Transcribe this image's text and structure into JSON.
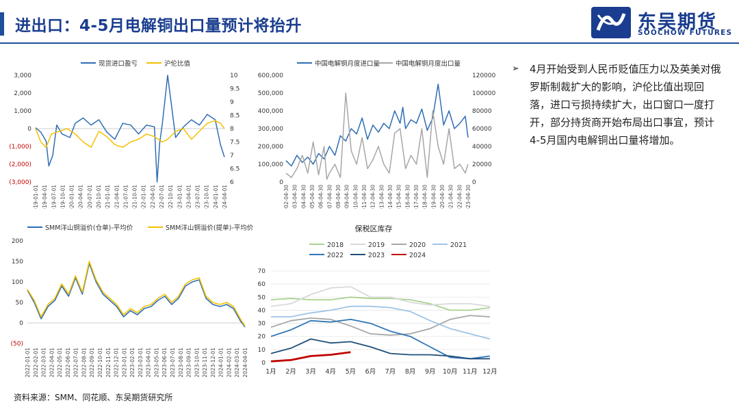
{
  "header": {
    "title": "进出口：4-5月电解铜出口量预计将抬升",
    "logo_name": "东吴期货",
    "logo_sub": "SOOCHOW FUTURES"
  },
  "commentary": "4月开始受到人民币贬值压力以及英美对俄罗斯制裁扩大的影响，沪伦比值出现回落，进口亏损持续扩大，出口窗口一度打开，部分持货商开始布局出口事宜，预计4-5月国内电解铜出口量将增加。",
  "source": "资料来源：SMM、同花顺、东吴期货研究所",
  "colors": {
    "blue": "#2e6db4",
    "yellow": "#f5c000",
    "gray": "#a6a6a6",
    "red": "#c00000",
    "navy": "#1a3d8f"
  },
  "chart_data": [
    {
      "id": "import-profit",
      "type": "line",
      "title": "",
      "legend_position": "top",
      "series": [
        {
          "name": "现货进口盈亏",
          "axis": "left",
          "color": "#2e6db4",
          "x_index": [
            0,
            4,
            8,
            10,
            13,
            16,
            20,
            26,
            30,
            36,
            42,
            48,
            54,
            60,
            66,
            72,
            78,
            84,
            90,
            92,
            94,
            96,
            100,
            106,
            112,
            118,
            124,
            130,
            136,
            140,
            143
          ],
          "values": [
            50,
            -200,
            -700,
            -2100,
            -1500,
            200,
            -300,
            -500,
            300,
            600,
            200,
            500,
            -200,
            -600,
            300,
            200,
            -300,
            200,
            100,
            -3000,
            -800,
            300,
            3000,
            -500,
            100,
            500,
            200,
            800,
            500,
            -900,
            -1600
          ]
        },
        {
          "name": "沪伦比值",
          "axis": "right",
          "color": "#f5c000",
          "x_index": [
            0,
            4,
            8,
            12,
            18,
            24,
            30,
            36,
            42,
            48,
            54,
            60,
            66,
            72,
            78,
            84,
            90,
            96,
            100,
            106,
            112,
            118,
            124,
            130,
            136,
            140,
            143
          ],
          "values": [
            8.0,
            7.5,
            7.3,
            7.8,
            7.9,
            8.0,
            7.8,
            7.5,
            7.3,
            7.9,
            7.7,
            7.4,
            7.3,
            7.5,
            7.6,
            7.8,
            7.7,
            7.5,
            7.6,
            7.9,
            8.0,
            7.6,
            7.9,
            8.2,
            8.3,
            8.2,
            8.0
          ]
        }
      ],
      "x_tick_labels": [
        "2019-01-01",
        "2019-04-01",
        "2019-07-01",
        "2019-10-01",
        "2020-01-01",
        "2020-04-01",
        "2020-07-01",
        "2020-10-01",
        "2021-01-01",
        "2021-04-01",
        "2021-07-01",
        "2021-10-01",
        "2022-01-01",
        "2022-04-01",
        "2022-07-01",
        "2022-10-01",
        "2023-01-01",
        "2023-04-01",
        "2023-07-01",
        "2023-10-01",
        "2024-01-01",
        "2024-04-01"
      ],
      "y_left_ticks": [
        "3,000",
        "2,000",
        "1,000",
        "0",
        "(1,000)",
        "(2,000)",
        "(3,000)"
      ],
      "y_left_range": [
        -3000,
        3000
      ],
      "y_right_ticks": [
        "10",
        "9.5",
        "9",
        "8.5",
        "8",
        "7.5",
        "7",
        "6.5",
        "6"
      ],
      "y_right_range": [
        6,
        10
      ]
    },
    {
      "id": "import-export-volume",
      "type": "line",
      "title": "",
      "legend_position": "top",
      "series": [
        {
          "name": "中国电解铜月度进口量",
          "axis": "left",
          "color": "#2e6db4",
          "x_index": [
            0,
            4,
            8,
            12,
            16,
            20,
            24,
            28,
            32,
            36,
            40,
            44,
            48,
            52,
            56,
            60,
            64,
            68,
            72,
            76,
            80,
            84,
            86,
            88,
            92,
            96,
            100,
            104,
            108,
            112,
            116,
            120,
            124,
            128,
            132,
            134
          ],
          "values": [
            120000,
            90000,
            150000,
            110000,
            140000,
            100000,
            160000,
            130000,
            200000,
            150000,
            260000,
            230000,
            300000,
            270000,
            360000,
            240000,
            320000,
            280000,
            330000,
            300000,
            400000,
            330000,
            420000,
            300000,
            350000,
            330000,
            410000,
            290000,
            360000,
            550000,
            320000,
            400000,
            300000,
            330000,
            370000,
            250000
          ]
        },
        {
          "name": "中国电解铜月度出口量",
          "axis": "right",
          "color": "#a6a6a6",
          "x_index": [
            0,
            4,
            8,
            12,
            16,
            20,
            24,
            28,
            30,
            32,
            36,
            40,
            44,
            48,
            52,
            56,
            60,
            64,
            68,
            72,
            76,
            80,
            84,
            88,
            92,
            96,
            100,
            104,
            108,
            112,
            116,
            120,
            124,
            128,
            132,
            134
          ],
          "values": [
            10000,
            5000,
            15000,
            30000,
            10000,
            45000,
            8000,
            40000,
            3000,
            10000,
            20000,
            5000,
            100000,
            35000,
            20000,
            50000,
            15000,
            25000,
            40000,
            20000,
            10000,
            55000,
            60000,
            15000,
            30000,
            20000,
            60000,
            5000,
            80000,
            40000,
            20000,
            60000,
            15000,
            20000,
            10000,
            20000
          ]
        }
      ],
      "x_tick_labels": [
        "2002-04-30",
        "2003-04-30",
        "2004-04-30",
        "2005-04-30",
        "2006-04-30",
        "2007-04-30",
        "2008-04-30",
        "2009-04-30",
        "2010-04-30",
        "2011-04-30",
        "2012-04-30",
        "2013-04-30",
        "2014-04-30",
        "2015-04-30",
        "2016-04-30",
        "2017-04-30",
        "2018-04-30",
        "2019-04-30",
        "2020-04-30",
        "2021-04-30",
        "2022-04-30",
        "2023-04-30"
      ],
      "y_left_ticks": [
        "600,000",
        "500,000",
        "400,000",
        "300,000",
        "200,000",
        "100,000",
        "0"
      ],
      "y_left_range": [
        0,
        600000
      ],
      "y_right_ticks": [
        "120000",
        "100000",
        "80000",
        "60000",
        "40000",
        "20000",
        "0"
      ],
      "y_right_range": [
        0,
        120000
      ]
    },
    {
      "id": "yangshan-premium",
      "type": "line",
      "title": "",
      "legend_position": "top",
      "series": [
        {
          "name": "SMM洋山铜溢价(仓单)-平均价",
          "color": "#2e6db4",
          "x_index": [
            0,
            3,
            6,
            9,
            12,
            15,
            18,
            21,
            24,
            27,
            30,
            33,
            36,
            39,
            42,
            45,
            48,
            51,
            54,
            57,
            60,
            63,
            66,
            69,
            72,
            75,
            78,
            81,
            84,
            87,
            90,
            93,
            95
          ],
          "values": [
            80,
            50,
            10,
            40,
            55,
            90,
            65,
            110,
            70,
            145,
            100,
            70,
            55,
            40,
            15,
            30,
            20,
            35,
            40,
            55,
            65,
            45,
            60,
            90,
            100,
            105,
            60,
            45,
            40,
            45,
            35,
            5,
            -10
          ]
        },
        {
          "name": "SMM洋山铜溢价(提单)-平均价",
          "color": "#f5c000",
          "x_index": [
            0,
            3,
            6,
            9,
            12,
            15,
            18,
            21,
            24,
            27,
            30,
            33,
            36,
            39,
            42,
            45,
            48,
            51,
            54,
            57,
            60,
            63,
            66,
            69,
            72,
            75,
            78,
            81,
            84,
            87,
            90,
            93,
            95
          ],
          "values": [
            82,
            55,
            15,
            45,
            60,
            95,
            70,
            115,
            75,
            150,
            105,
            75,
            60,
            45,
            20,
            35,
            25,
            40,
            45,
            60,
            70,
            50,
            65,
            95,
            105,
            110,
            65,
            50,
            45,
            50,
            40,
            10,
            -8
          ]
        }
      ],
      "x_tick_labels": [
        "2022-01-01",
        "2022-02-01",
        "2022-03-01",
        "2022-04-01",
        "2022-05-01",
        "2022-06-01",
        "2022-07-01",
        "2022-08-01",
        "2022-09-01",
        "2022-10-01",
        "2022-11-01",
        "2022-12-01",
        "2023-01-01",
        "2023-02-01",
        "2023-03-01",
        "2023-04-01",
        "2023-05-01",
        "2023-06-01",
        "2023-07-01",
        "2023-08-01",
        "2023-09-01",
        "2023-10-01",
        "2023-11-01",
        "2023-12-01",
        "2024-01-01",
        "2024-02-01",
        "2024-03-01",
        "2024-04-01"
      ],
      "y_ticks": [
        "200",
        "150",
        "100",
        "50",
        "0",
        "(50)"
      ],
      "y_range": [
        -50,
        200
      ]
    },
    {
      "id": "bonded-stock",
      "type": "line",
      "title": "保税区库存",
      "legend_position": "top",
      "categories": [
        "1月",
        "2月",
        "3月",
        "4月",
        "5月",
        "6月",
        "7月",
        "8月",
        "9月",
        "10月",
        "11月",
        "12月"
      ],
      "series": [
        {
          "name": "2018",
          "color": "#a9d18e",
          "x": [
            0,
            1,
            2,
            3,
            4,
            5,
            6,
            7,
            8,
            9,
            10,
            11
          ],
          "values": [
            48,
            49,
            48,
            48,
            50,
            49,
            49,
            48,
            45,
            40,
            40,
            42
          ]
        },
        {
          "name": "2019",
          "color": "#d9d9d9",
          "x": [
            0,
            1,
            2,
            3,
            4,
            5,
            6,
            7,
            8,
            9,
            10,
            11
          ],
          "values": [
            43,
            45,
            52,
            57,
            58,
            50,
            50,
            46,
            44,
            45,
            45,
            43
          ]
        },
        {
          "name": "2020",
          "color": "#a6a6a6",
          "x": [
            0,
            1,
            2,
            3,
            4,
            5,
            6,
            7,
            8,
            9,
            10,
            11
          ],
          "values": [
            27,
            32,
            34,
            33,
            28,
            22,
            21,
            22,
            26,
            33,
            36,
            35
          ]
        },
        {
          "name": "2021",
          "color": "#9dc3e6",
          "x": [
            0,
            1,
            2,
            3,
            4,
            5,
            6,
            7,
            8,
            9,
            10,
            11
          ],
          "values": [
            35,
            35,
            38,
            40,
            43,
            43,
            42,
            39,
            32,
            26,
            22,
            18
          ]
        },
        {
          "name": "2022",
          "color": "#2e75b6",
          "x": [
            0,
            1,
            2,
            3,
            4,
            5,
            6,
            7,
            8,
            9,
            10,
            11
          ],
          "values": [
            20,
            25,
            32,
            31,
            33,
            30,
            24,
            20,
            12,
            4,
            3,
            5
          ]
        },
        {
          "name": "2023",
          "color": "#1f4e79",
          "x": [
            0,
            1,
            2,
            3,
            4,
            5,
            6,
            7,
            8,
            9,
            10,
            11
          ],
          "values": [
            7,
            11,
            18,
            15,
            16,
            12,
            7,
            6,
            6,
            5,
            3,
            3
          ]
        },
        {
          "name": "2024",
          "color": "#c00000",
          "x": [
            0,
            1,
            2,
            3,
            4
          ],
          "values": [
            1,
            2,
            5,
            6,
            8
          ]
        }
      ],
      "y_ticks": [
        "70",
        "60",
        "50",
        "40",
        "30",
        "20",
        "10",
        "0"
      ],
      "y_range": [
        0,
        70
      ]
    }
  ]
}
